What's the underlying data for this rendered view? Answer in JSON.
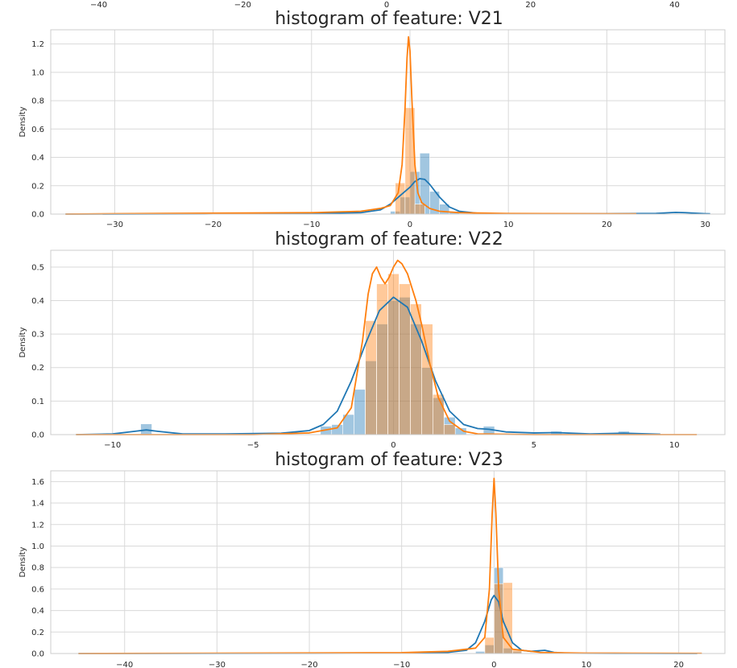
{
  "colors": {
    "series1": "#1f77b4",
    "series2": "#ff7f0e",
    "grid": "#d9d9d9",
    "frame": "#cccccc",
    "text": "#262626"
  },
  "top_strip": {
    "ticks": [
      -40,
      -20,
      0,
      20,
      40
    ]
  },
  "chart_data": [
    {
      "type": "histogram",
      "title": "histogram of feature: V21",
      "ylabel": "Density",
      "xlim": [
        -36.5,
        32.0
      ],
      "ylim": [
        0,
        1.3
      ],
      "xticks": [
        -30,
        -20,
        -10,
        0,
        10,
        20,
        30
      ],
      "yticks": [
        0.0,
        0.2,
        0.4,
        0.6,
        0.8,
        1.0,
        1.2
      ],
      "grid": true,
      "series": [
        {
          "color": "blue",
          "bins": [
            [
              -2.0,
              -1.0,
              0.02
            ],
            [
              -1.0,
              0.0,
              0.12
            ],
            [
              0.0,
              1.0,
              0.3
            ],
            [
              1.0,
              2.0,
              0.43
            ],
            [
              2.0,
              3.0,
              0.16
            ],
            [
              3.0,
              4.0,
              0.07
            ],
            [
              4.0,
              5.0,
              0.02
            ]
          ],
          "kde": [
            [
              -35,
              0
            ],
            [
              -20,
              0.002
            ],
            [
              -10,
              0.005
            ],
            [
              -5,
              0.01
            ],
            [
              -3,
              0.03
            ],
            [
              -2,
              0.07
            ],
            [
              -1,
              0.13
            ],
            [
              0,
              0.19
            ],
            [
              0.5,
              0.23
            ],
            [
              1,
              0.25
            ],
            [
              1.5,
              0.245
            ],
            [
              2,
              0.21
            ],
            [
              3,
              0.12
            ],
            [
              4,
              0.05
            ],
            [
              5,
              0.02
            ],
            [
              7,
              0.005
            ],
            [
              10,
              0.002
            ],
            [
              20,
              0.002
            ],
            [
              25,
              0.005
            ],
            [
              27,
              0.012
            ],
            [
              28,
              0.01
            ],
            [
              30,
              0.003
            ],
            [
              30.5,
              0.002
            ]
          ]
        },
        {
          "color": "orange",
          "bins": [
            [
              -1.5,
              -0.5,
              0.22
            ],
            [
              -0.5,
              0.5,
              0.75
            ],
            [
              0.5,
              1.5,
              0.07
            ]
          ],
          "kde": [
            [
              -35,
              0
            ],
            [
              -25,
              0.005
            ],
            [
              -10,
              0.01
            ],
            [
              -5,
              0.02
            ],
            [
              -3,
              0.04
            ],
            [
              -2,
              0.06
            ],
            [
              -1.2,
              0.15
            ],
            [
              -0.8,
              0.35
            ],
            [
              -0.5,
              0.75
            ],
            [
              -0.3,
              1.1
            ],
            [
              -0.15,
              1.25
            ],
            [
              0,
              1.15
            ],
            [
              0.2,
              0.8
            ],
            [
              0.5,
              0.35
            ],
            [
              0.8,
              0.15
            ],
            [
              1.2,
              0.08
            ],
            [
              2,
              0.04
            ],
            [
              3,
              0.02
            ],
            [
              5,
              0.01
            ],
            [
              10,
              0.004
            ],
            [
              23,
              0.002
            ]
          ]
        }
      ]
    },
    {
      "type": "histogram",
      "title": "histogram of feature: V22",
      "ylabel": "Density",
      "xlim": [
        -12.2,
        11.8
      ],
      "ylim": [
        0,
        0.55
      ],
      "xticks": [
        -10,
        -5,
        0,
        5,
        10
      ],
      "yticks": [
        0.0,
        0.1,
        0.2,
        0.3,
        0.4,
        0.5
      ],
      "grid": true,
      "series": [
        {
          "color": "blue",
          "bins": [
            [
              -9.0,
              -8.6,
              0.032
            ],
            [
              -2.6,
              -2.2,
              0.025
            ],
            [
              -2.2,
              -1.8,
              0.03
            ],
            [
              -1.8,
              -1.4,
              0.06
            ],
            [
              -1.4,
              -1.0,
              0.135
            ],
            [
              -1.0,
              -0.6,
              0.22
            ],
            [
              -0.6,
              -0.2,
              0.33
            ],
            [
              -0.2,
              0.2,
              0.4
            ],
            [
              0.2,
              0.6,
              0.41
            ],
            [
              0.6,
              1.0,
              0.33
            ],
            [
              1.0,
              1.4,
              0.2
            ],
            [
              1.4,
              1.8,
              0.11
            ],
            [
              1.8,
              2.2,
              0.052
            ],
            [
              2.2,
              2.6,
              0.02
            ],
            [
              3.2,
              3.6,
              0.025
            ],
            [
              5.6,
              6.0,
              0.01
            ],
            [
              8.0,
              8.4,
              0.01
            ]
          ],
          "kde": [
            [
              -11.3,
              0
            ],
            [
              -10,
              0.002
            ],
            [
              -9.2,
              0.01
            ],
            [
              -8.8,
              0.014
            ],
            [
              -8.4,
              0.01
            ],
            [
              -7.5,
              0.002
            ],
            [
              -6,
              0.002
            ],
            [
              -4,
              0.004
            ],
            [
              -3,
              0.012
            ],
            [
              -2.5,
              0.03
            ],
            [
              -2,
              0.07
            ],
            [
              -1.5,
              0.16
            ],
            [
              -1,
              0.27
            ],
            [
              -0.5,
              0.37
            ],
            [
              0,
              0.41
            ],
            [
              0.5,
              0.38
            ],
            [
              1,
              0.28
            ],
            [
              1.5,
              0.16
            ],
            [
              2,
              0.07
            ],
            [
              2.5,
              0.03
            ],
            [
              3,
              0.018
            ],
            [
              3.4,
              0.016
            ],
            [
              4,
              0.008
            ],
            [
              5,
              0.005
            ],
            [
              5.8,
              0.006
            ],
            [
              7,
              0.002
            ],
            [
              8.2,
              0.004
            ],
            [
              9.5,
              0.001
            ]
          ]
        },
        {
          "color": "orange",
          "bins": [
            [
              -1.0,
              -0.6,
              0.34
            ],
            [
              -0.6,
              -0.2,
              0.45
            ],
            [
              -0.2,
              0.2,
              0.48
            ],
            [
              0.2,
              0.6,
              0.45
            ],
            [
              0.6,
              1.0,
              0.39
            ],
            [
              1.0,
              1.4,
              0.33
            ],
            [
              1.4,
              1.8,
              0.12
            ],
            [
              1.8,
              2.2,
              0.03
            ]
          ],
          "kde": [
            [
              -11.3,
              0
            ],
            [
              -5,
              0
            ],
            [
              -3,
              0.005
            ],
            [
              -2,
              0.02
            ],
            [
              -1.5,
              0.08
            ],
            [
              -1.1,
              0.28
            ],
            [
              -0.9,
              0.42
            ],
            [
              -0.75,
              0.48
            ],
            [
              -0.6,
              0.5
            ],
            [
              -0.45,
              0.47
            ],
            [
              -0.3,
              0.45
            ],
            [
              -0.15,
              0.47
            ],
            [
              0,
              0.5
            ],
            [
              0.15,
              0.52
            ],
            [
              0.3,
              0.51
            ],
            [
              0.5,
              0.48
            ],
            [
              0.8,
              0.4
            ],
            [
              1.0,
              0.33
            ],
            [
              1.3,
              0.21
            ],
            [
              1.6,
              0.11
            ],
            [
              2,
              0.04
            ],
            [
              2.5,
              0.01
            ],
            [
              3,
              0.002
            ],
            [
              5,
              0
            ],
            [
              10.8,
              0
            ]
          ]
        }
      ]
    },
    {
      "type": "histogram",
      "title": "histogram of feature: V23",
      "ylabel": "Density",
      "xlim": [
        -48.0,
        25.0
      ],
      "ylim": [
        0,
        1.7
      ],
      "xticks": [
        -40,
        -30,
        -20,
        -10,
        0,
        10,
        20
      ],
      "yticks": [
        0.0,
        0.2,
        0.4,
        0.6,
        0.8,
        1.0,
        1.2,
        1.4,
        1.6
      ],
      "grid": true,
      "series": [
        {
          "color": "blue",
          "bins": [
            [
              -2.0,
              -1.0,
              0.02
            ],
            [
              -1.0,
              0.0,
              0.08
            ],
            [
              0.0,
              1.0,
              0.8
            ],
            [
              1.0,
              2.0,
              0.05
            ],
            [
              2.0,
              3.0,
              0.02
            ]
          ],
          "kde": [
            [
              -45,
              0
            ],
            [
              -20,
              0.002
            ],
            [
              -10,
              0.004
            ],
            [
              -5,
              0.01
            ],
            [
              -3,
              0.03
            ],
            [
              -2,
              0.1
            ],
            [
              -1,
              0.3
            ],
            [
              -0.3,
              0.5
            ],
            [
              0,
              0.54
            ],
            [
              0.5,
              0.48
            ],
            [
              1,
              0.3
            ],
            [
              2,
              0.1
            ],
            [
              3,
              0.03
            ],
            [
              4,
              0.02
            ],
            [
              5.5,
              0.03
            ],
            [
              6.5,
              0.01
            ],
            [
              8,
              0.003
            ],
            [
              15,
              0.001
            ],
            [
              22,
              0
            ]
          ]
        },
        {
          "color": "orange",
          "bins": [
            [
              -1.0,
              0.0,
              0.15
            ],
            [
              0.0,
              1.0,
              0.65
            ],
            [
              1.0,
              2.0,
              0.66
            ],
            [
              2.0,
              3.0,
              0.04
            ]
          ],
          "kde": [
            [
              -45,
              0
            ],
            [
              -20,
              0.005
            ],
            [
              -10,
              0.008
            ],
            [
              -5,
              0.02
            ],
            [
              -2,
              0.05
            ],
            [
              -1,
              0.15
            ],
            [
              -0.5,
              0.6
            ],
            [
              -0.2,
              1.3
            ],
            [
              0,
              1.63
            ],
            [
              0.2,
              1.3
            ],
            [
              0.5,
              0.6
            ],
            [
              1,
              0.15
            ],
            [
              2,
              0.04
            ],
            [
              5,
              0.01
            ],
            [
              10,
              0.004
            ],
            [
              22.5,
              0.002
            ]
          ]
        }
      ]
    }
  ]
}
